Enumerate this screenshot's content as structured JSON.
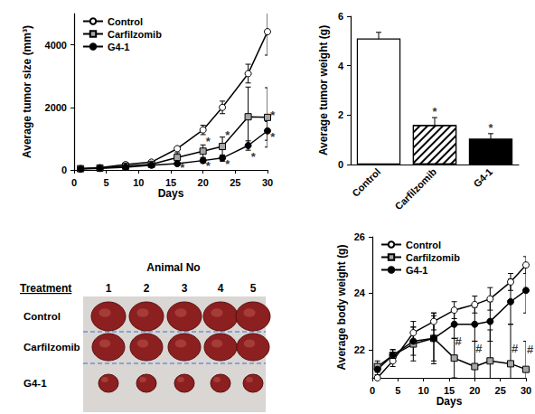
{
  "chart_data": [
    {
      "type": "line",
      "x_label": "Days",
      "y_label": "Average tumor size (mm³)",
      "x": [
        1,
        4,
        8,
        12,
        16,
        20,
        23,
        27,
        30
      ],
      "series": [
        {
          "name": "Control",
          "color": "#ffffff",
          "marker": "circle",
          "values": [
            40,
            70,
            170,
            250,
            680,
            1280,
            2000,
            3080,
            4420
          ],
          "error": [
            10,
            15,
            30,
            40,
            60,
            150,
            200,
            300,
            750
          ]
        },
        {
          "name": "Carfilzomib",
          "color": "#a6a6a6",
          "marker": "square",
          "values": [
            40,
            60,
            120,
            180,
            400,
            600,
            750,
            1700,
            1680
          ],
          "error": [
            10,
            10,
            30,
            40,
            150,
            200,
            300,
            950,
            950
          ]
        },
        {
          "name": "G4-1",
          "color": "#000000",
          "marker": "circle",
          "values": [
            30,
            50,
            90,
            150,
            200,
            300,
            380,
            780,
            1250
          ],
          "error": [
            10,
            10,
            20,
            30,
            50,
            80,
            100,
            150,
            300
          ]
        }
      ],
      "xlim": [
        0,
        30
      ],
      "xticks": [
        0,
        5,
        10,
        15,
        20,
        25,
        30
      ],
      "ylim": [
        0,
        5000
      ],
      "yticks": [
        0,
        2000,
        4000
      ],
      "grid": false,
      "legend": "upper left",
      "annotations": [
        {
          "x": 20.8,
          "y": 900,
          "text": "*"
        },
        {
          "x": 23.8,
          "y": 1100,
          "text": "*"
        },
        {
          "x": 30.8,
          "y": 1750,
          "text": "*"
        },
        {
          "x": 16.8,
          "y": 60,
          "text": "*"
        },
        {
          "x": 20.8,
          "y": 120,
          "text": "*"
        },
        {
          "x": 23.8,
          "y": 180,
          "text": "*"
        },
        {
          "x": 27.8,
          "y": 420,
          "text": "*"
        },
        {
          "x": 30.8,
          "y": 1050,
          "text": "*"
        }
      ]
    },
    {
      "type": "bar",
      "y_label": "Average tumor weight (g)",
      "categories": [
        "Control",
        "Carfilzomib",
        "G4-1"
      ],
      "values": [
        5.1,
        1.6,
        1.05
      ],
      "error": [
        0.25,
        0.3,
        0.2
      ],
      "colors": [
        "#ffffff",
        "#ffffff",
        "#000000"
      ],
      "ylim": [
        0,
        6
      ],
      "yticks": [
        0,
        2,
        4,
        6
      ],
      "grid": false,
      "annotations": [
        {
          "x": "Carfilzomib",
          "y": 2.15,
          "text": "*"
        },
        {
          "x": "G4-1",
          "y": 1.5,
          "text": "*"
        }
      ]
    },
    {
      "type": "line",
      "x_label": "Days",
      "y_label": "Average body weight (g)",
      "x": [
        1,
        4,
        8,
        12,
        16,
        20,
        23,
        27,
        30
      ],
      "series": [
        {
          "name": "Control",
          "color": "#ffffff",
          "marker": "circle",
          "values": [
            21.0,
            21.6,
            22.6,
            23.0,
            23.4,
            23.6,
            23.8,
            24.4,
            25.0
          ],
          "error": [
            0.1,
            0.2,
            0.4,
            0.3,
            0.3,
            0.3,
            0.4,
            0.3,
            0.3
          ]
        },
        {
          "name": "Carfilzomib",
          "color": "#a6a6a6",
          "marker": "square",
          "values": [
            21.4,
            21.8,
            22.2,
            22.4,
            21.7,
            21.4,
            21.6,
            21.5,
            21.3
          ],
          "error": [
            0.2,
            0.2,
            0.6,
            0.8,
            0.7,
            0.9,
            1.1,
            1.4,
            1.0
          ]
        },
        {
          "name": "G4-1",
          "color": "#000000",
          "marker": "circle",
          "values": [
            21.3,
            21.8,
            22.3,
            22.4,
            22.9,
            22.9,
            23.0,
            23.7,
            24.1
          ],
          "error": [
            0.2,
            0.2,
            0.5,
            0.9,
            0.5,
            0.6,
            0.7,
            0.8,
            0.8
          ]
        }
      ],
      "xlim": [
        0,
        30
      ],
      "xticks": [
        0,
        5,
        10,
        15,
        20,
        25,
        30
      ],
      "ylim": [
        21,
        26
      ],
      "yticks": [
        22,
        24,
        26
      ],
      "grid": false,
      "legend": "upper left",
      "annotations": [
        {
          "x": 16.8,
          "y": 22.3,
          "text": "#"
        },
        {
          "x": 20.8,
          "y": 22.05,
          "text": "#"
        },
        {
          "x": 27.8,
          "y": 22.05,
          "text": "#"
        },
        {
          "x": 30.8,
          "y": 22.0,
          "text": "#"
        }
      ]
    }
  ],
  "photo_panel": {
    "title": "Animal No",
    "row_header": "Treatment",
    "columns": [
      "1",
      "2",
      "3",
      "4",
      "5"
    ],
    "rows": [
      "Control",
      "Carfilzomib",
      "G4-1"
    ]
  }
}
